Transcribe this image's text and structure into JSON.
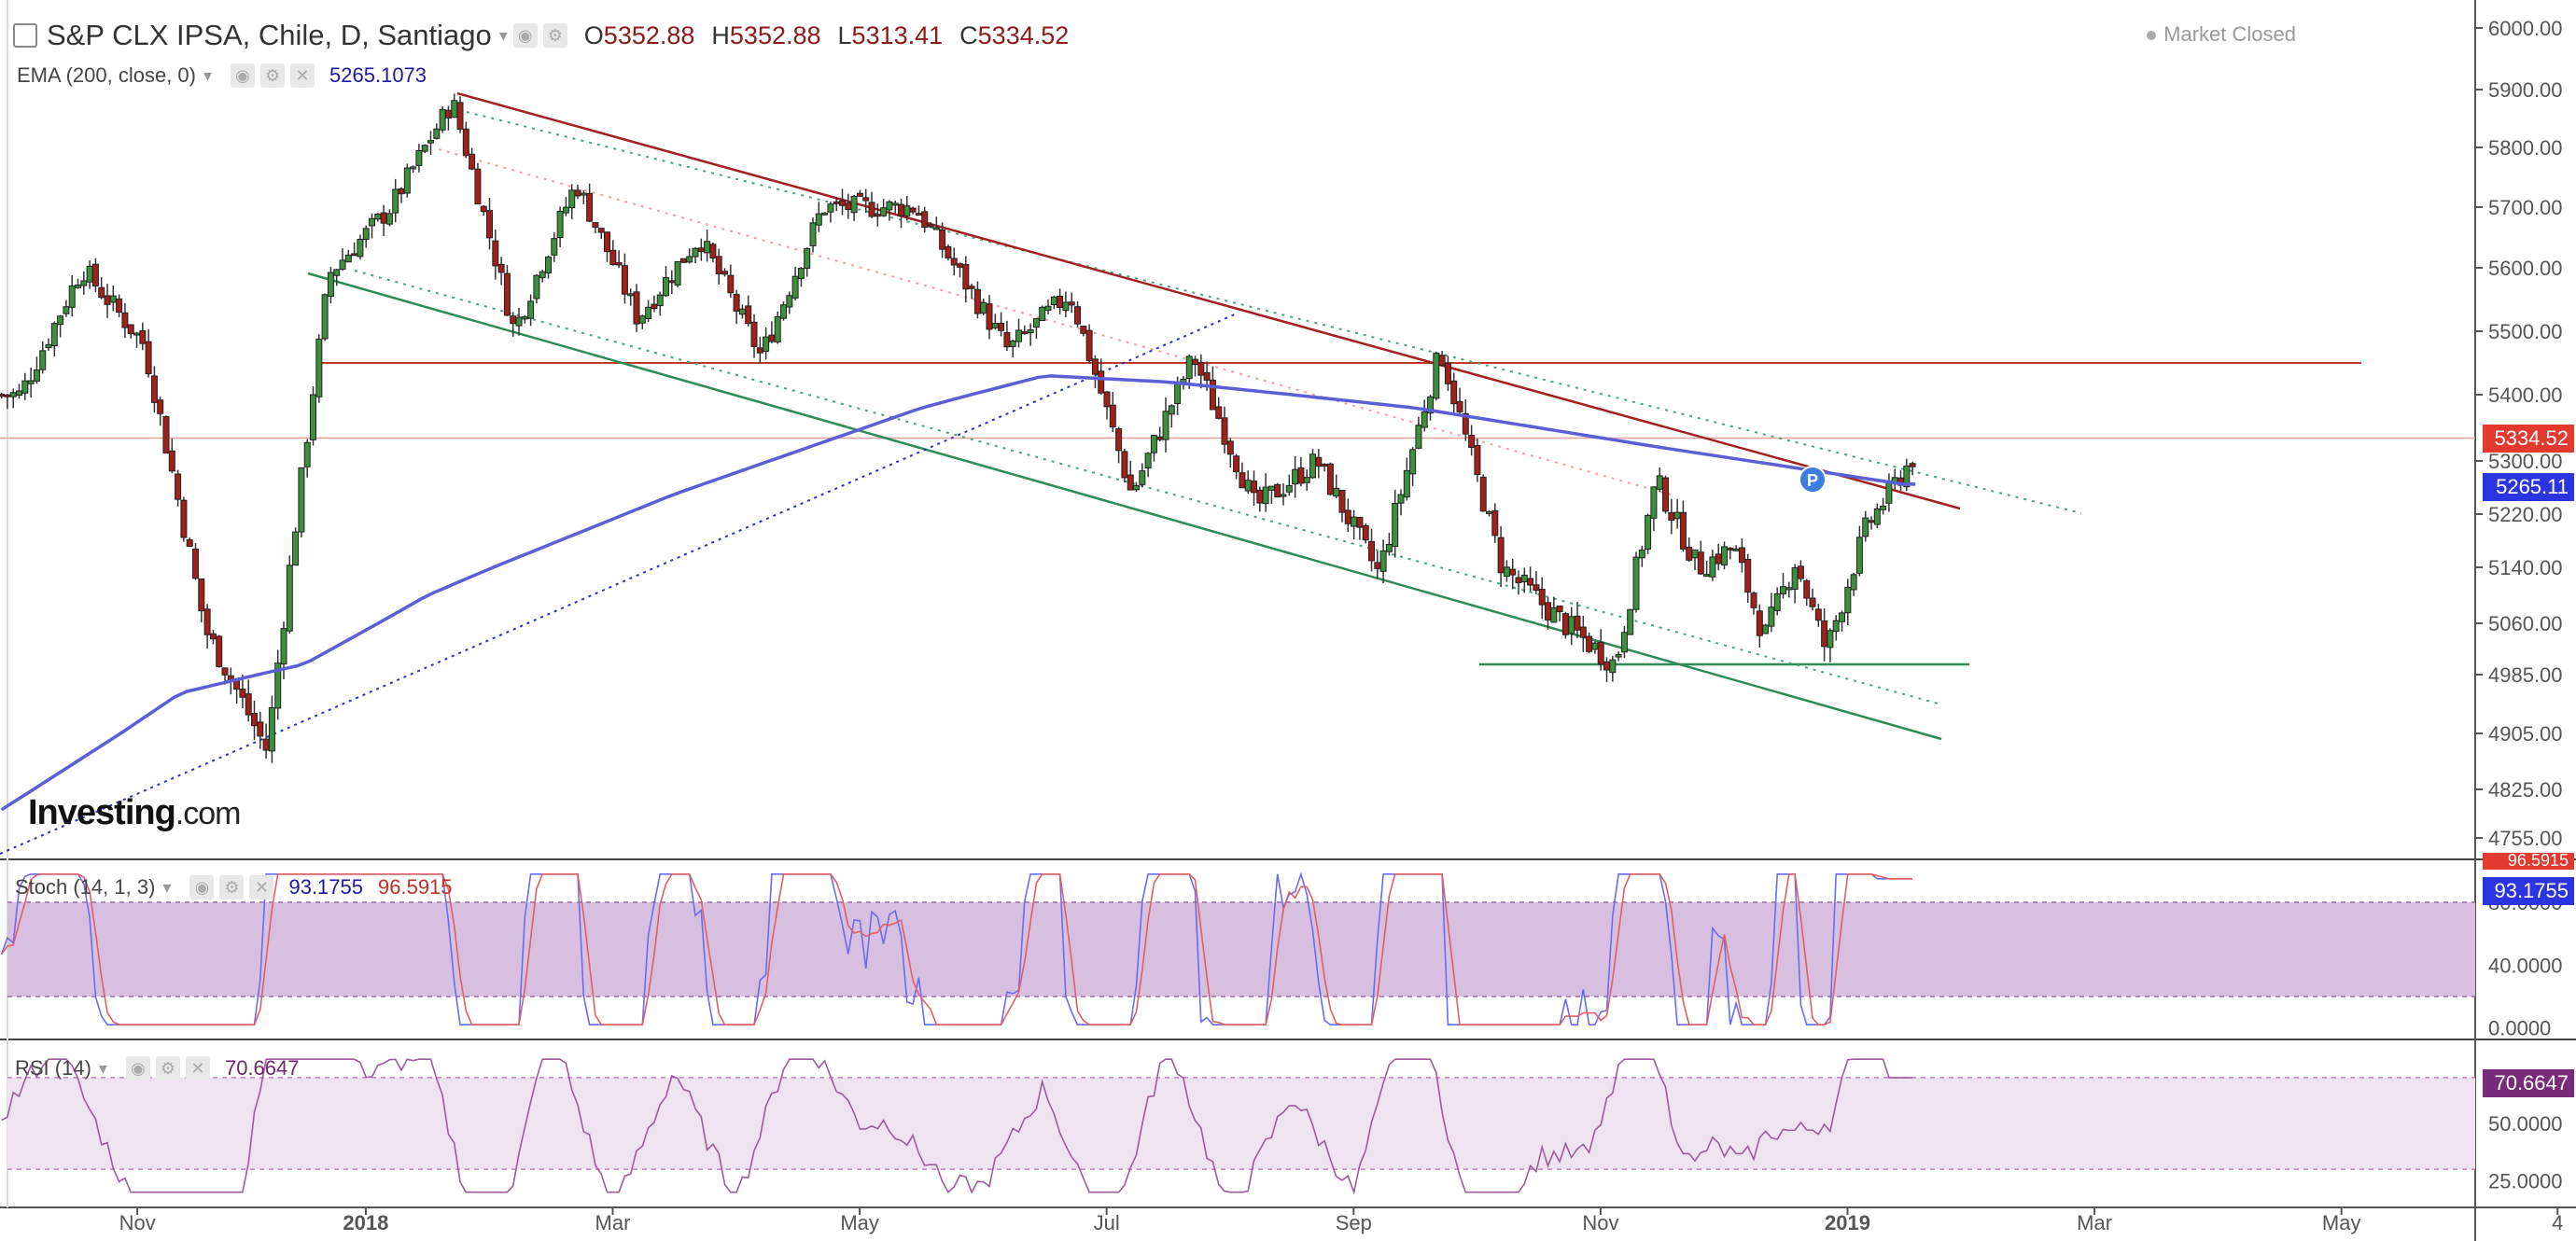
{
  "header": {
    "symbol_title": "S&P CLX IPSA, Chile, D, Santiago",
    "ohlc": {
      "o_label": "O",
      "o_value": "5352.88",
      "h_label": "H",
      "h_value": "5352.88",
      "l_label": "L",
      "l_value": "5313.41",
      "c_label": "C",
      "c_value": "5334.52"
    },
    "market_status": "Market Closed"
  },
  "ema_indicator": {
    "label": "EMA (200, close, 0)",
    "value": "5265.1073"
  },
  "stoch_indicator": {
    "label": "Stoch (14, 1, 3)",
    "k_value": "93.1755",
    "d_value": "96.5915"
  },
  "rsi_indicator": {
    "label": "RSI (14)",
    "value": "70.6647"
  },
  "logo": {
    "brand": "Investing",
    "suffix": ".com"
  },
  "price_tags": {
    "last_price": "5334.52",
    "ema_price": "5265.11",
    "stoch_tag": "93.1755",
    "stoch_tag2": "96.5915",
    "rsi_tag": "70.6647"
  },
  "colors": {
    "up_candle": "#3c8f3c",
    "down_candle": "#a0201a",
    "ema_line": "#5b5fd6",
    "stoch_k": "#6b6bf0",
    "stoch_d": "#e06060",
    "rsi_line": "#9b5c9b",
    "stoch_band": "#d7bfe0",
    "rsi_band": "#efe3f2",
    "last_price_tag": "#e23a2e",
    "ema_tag": "#2a34e0",
    "rsi_tag": "#7a2a7a"
  },
  "chart_data": [
    {
      "type": "candlestick",
      "title": "S&P CLX IPSA, Chile, D, Santiago",
      "x_tick_labels": [
        "Nov",
        "2018",
        "Mar",
        "May",
        "Jul",
        "Sep",
        "Nov",
        "2019",
        "Mar",
        "May",
        "4"
      ],
      "y_tick_labels": [
        "6000.00",
        "5900.00",
        "5800.00",
        "5700.00",
        "5600.00",
        "5500.00",
        "5400.00",
        "5300.00",
        "5220.00",
        "5140.00",
        "5060.00",
        "4985.00",
        "4905.00",
        "4825.00",
        "4755.00"
      ],
      "ylim": [
        4740,
        6010
      ],
      "last_close": 5334.52,
      "ema_200_last": 5265.11,
      "price_path_key_points": [
        {
          "x": "Oct 2017",
          "y": 5400
        },
        {
          "x": "Oct 2017",
          "y": 5600
        },
        {
          "x": "Nov 2017",
          "y": 5480
        },
        {
          "x": "Nov 2017",
          "y": 5050
        },
        {
          "x": "Dec 2017",
          "y": 4880
        },
        {
          "x": "Dec 2017",
          "y": 5590
        },
        {
          "x": "Jan 2018",
          "y": 5700
        },
        {
          "x": "Jan 2018",
          "y": 5880
        },
        {
          "x": "Feb 2018",
          "y": 5500
        },
        {
          "x": "Feb 2018",
          "y": 5740
        },
        {
          "x": "Mar 2018",
          "y": 5520
        },
        {
          "x": "Mar 2018",
          "y": 5650
        },
        {
          "x": "Apr 2018",
          "y": 5460
        },
        {
          "x": "Apr 2018",
          "y": 5700
        },
        {
          "x": "May 2018",
          "y": 5700
        },
        {
          "x": "Jun 2018",
          "y": 5470
        },
        {
          "x": "Jun 2018",
          "y": 5560
        },
        {
          "x": "Jul 2018",
          "y": 5250
        },
        {
          "x": "Jul 2018",
          "y": 5460
        },
        {
          "x": "Aug 2018",
          "y": 5230
        },
        {
          "x": "Aug 2018",
          "y": 5300
        },
        {
          "x": "Sep 2018",
          "y": 5130
        },
        {
          "x": "Sep 2018",
          "y": 5470
        },
        {
          "x": "Oct 2018",
          "y": 5140
        },
        {
          "x": "Oct 2018",
          "y": 5060
        },
        {
          "x": "Nov 2018",
          "y": 5000
        },
        {
          "x": "Nov 2018",
          "y": 5270
        },
        {
          "x": "Nov 2018",
          "y": 5140
        },
        {
          "x": "Dec 2018",
          "y": 5170
        },
        {
          "x": "Dec 2018",
          "y": 5040
        },
        {
          "x": "Dec 2018",
          "y": 5150
        },
        {
          "x": "Dec 2018",
          "y": 5020
        },
        {
          "x": "Jan 2019",
          "y": 5200
        },
        {
          "x": "Jan 2019",
          "y": 5340
        }
      ],
      "ema_path_key_points": [
        {
          "x": "Oct 2017",
          "y": 4790
        },
        {
          "x": "Nov 2017",
          "y": 4960
        },
        {
          "x": "Dec 2017",
          "y": 5000
        },
        {
          "x": "Jan 2018",
          "y": 5100
        },
        {
          "x": "Mar 2018",
          "y": 5250
        },
        {
          "x": "May 2018",
          "y": 5380
        },
        {
          "x": "Jun 2018",
          "y": 5430
        },
        {
          "x": "Jul 2018",
          "y": 5420
        },
        {
          "x": "Sep 2018",
          "y": 5380
        },
        {
          "x": "Nov 2018",
          "y": 5320
        },
        {
          "x": "Jan 2019",
          "y": 5265
        }
      ],
      "horizontal_lines": [
        {
          "name": "resistance",
          "y": 5450
        },
        {
          "name": "support",
          "y": 5000
        },
        {
          "name": "last-price",
          "y": 5334.52
        }
      ]
    },
    {
      "type": "line",
      "title": "Stoch (14, 1, 3)",
      "y_tick_labels": [
        "80.0000",
        "40.0000",
        "0.0000"
      ],
      "ylim": [
        -5,
        105
      ],
      "band": [
        20,
        80
      ],
      "series": [
        {
          "name": "%K",
          "last": 93.1755
        },
        {
          "name": "%D",
          "last": 96.5915
        }
      ]
    },
    {
      "type": "line",
      "title": "RSI (14)",
      "y_tick_labels": [
        "50.0000",
        "25.0000"
      ],
      "ylim": [
        15,
        85
      ],
      "band": [
        30,
        70
      ],
      "series": [
        {
          "name": "RSI",
          "last": 70.6647
        }
      ]
    }
  ]
}
